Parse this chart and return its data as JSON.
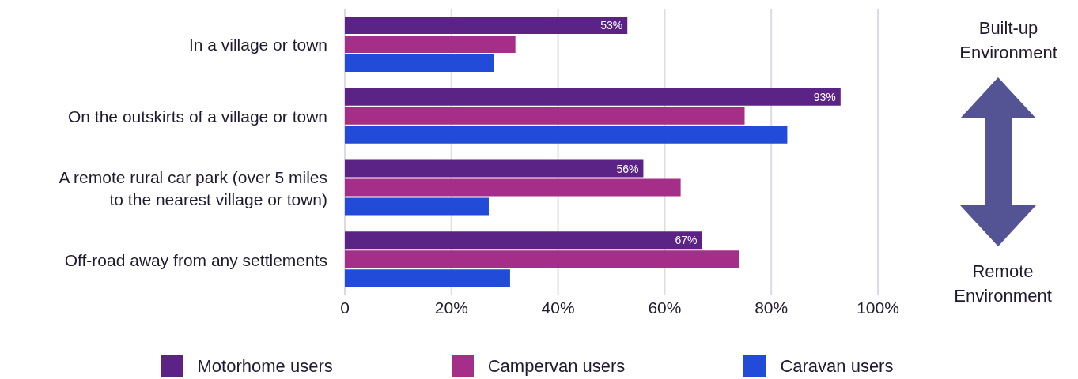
{
  "chart_data": {
    "type": "bar",
    "orientation": "horizontal",
    "categories": [
      "In a village or town",
      "On the outskirts of a village or town",
      "A remote rural car park (over 5 miles to the nearest village or town)",
      "Off-road away from any settlements"
    ],
    "series": [
      {
        "name": "Motorhome users",
        "color": "#5b2386",
        "values": [
          53,
          93,
          56,
          67
        ],
        "value_labels": [
          "53%",
          "93%",
          "56%",
          "67%"
        ]
      },
      {
        "name": "Campervan users",
        "color": "#a52f88",
        "values": [
          32,
          75,
          63,
          74
        ]
      },
      {
        "name": "Caravan users",
        "color": "#214bd8",
        "values": [
          28,
          83,
          27,
          31
        ]
      }
    ],
    "xlim": [
      0,
      100
    ],
    "xticks": [
      0,
      {
        "value": 20,
        "label": "20%"
      },
      {
        "value": 40,
        "label": "40%"
      },
      {
        "value": 60,
        "label": "60%"
      },
      {
        "value": 80,
        "label": "80%"
      },
      {
        "value": 100,
        "label": "100%"
      }
    ],
    "grid": "x",
    "legend": "bottom",
    "annotations": [
      "Built-up Environment",
      "Remote Environment"
    ]
  }
}
